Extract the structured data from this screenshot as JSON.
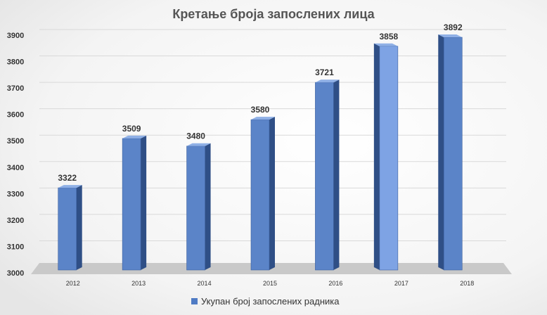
{
  "chart_data": {
    "type": "bar",
    "title": "Кретање броја запослених лица",
    "categories": [
      "2012",
      "2013",
      "2014",
      "2015",
      "2016",
      "2017",
      "2018"
    ],
    "series": [
      {
        "name": "Укупан број запослених радника",
        "values": [
          3322,
          3509,
          3480,
          3580,
          3721,
          3858,
          3892
        ]
      }
    ],
    "data_labels": [
      "3322",
      "3509",
      "3480",
      "3580",
      "3721",
      "3858",
      "3892"
    ],
    "y_ticks": [
      "3000",
      "3100",
      "3200",
      "3300",
      "3400",
      "3500",
      "3600",
      "3700",
      "3800",
      "3900"
    ],
    "ylim": [
      3000,
      3900
    ],
    "xlabel": "",
    "ylabel": "",
    "grid": true,
    "legend_position": "bottom",
    "colors": {
      "bar_front": "#5b84c8",
      "bar_side": "#2f4f86",
      "bar_top": "#8fb0e6",
      "bar_highlight_front": "#7ea3e4",
      "floor": "#c9c9c9",
      "grid": "#d9d9d9",
      "text": "#333333",
      "legend_swatch": "#4f7bc4"
    }
  }
}
